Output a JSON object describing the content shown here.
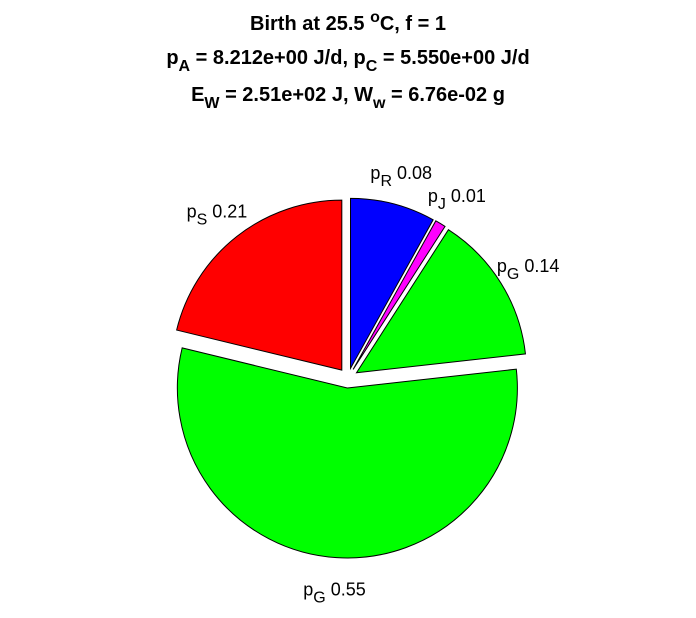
{
  "chart_data": {
    "type": "pie",
    "title": [
      [
        {
          "text": "Birth at 25.5 "
        },
        {
          "text": "o",
          "script": "sup"
        },
        {
          "text": "C, f = 1"
        }
      ],
      [
        {
          "text": "p"
        },
        {
          "text": "A",
          "script": "sub"
        },
        {
          "text": " = 8.212e+00 J/d, p"
        },
        {
          "text": "C",
          "script": "sub"
        },
        {
          "text": " = 5.550e+00 J/d"
        }
      ],
      [
        {
          "text": "E"
        },
        {
          "text": "W",
          "script": "sub"
        },
        {
          "text": " = 2.51e+02 J, W"
        },
        {
          "text": "w",
          "script": "sub"
        },
        {
          "text": " = 6.76e-02 g"
        }
      ]
    ],
    "categories": [
      [
        {
          "text": "p"
        },
        {
          "text": "R",
          "script": "sub"
        }
      ],
      [
        {
          "text": "p"
        },
        {
          "text": "J",
          "script": "sub"
        }
      ],
      [
        {
          "text": "p"
        },
        {
          "text": "G",
          "script": "sub"
        }
      ],
      [
        {
          "text": "p"
        },
        {
          "text": "G",
          "script": "sub"
        }
      ],
      [
        {
          "text": "p"
        },
        {
          "text": "S",
          "script": "sub"
        }
      ]
    ],
    "values": [
      0.08,
      0.01,
      0.14,
      0.55,
      0.21
    ],
    "colors": [
      "#0000ff",
      "#ff00ff",
      "#00ff00",
      "#00ff00",
      "#ff0000"
    ],
    "exploded": true
  }
}
